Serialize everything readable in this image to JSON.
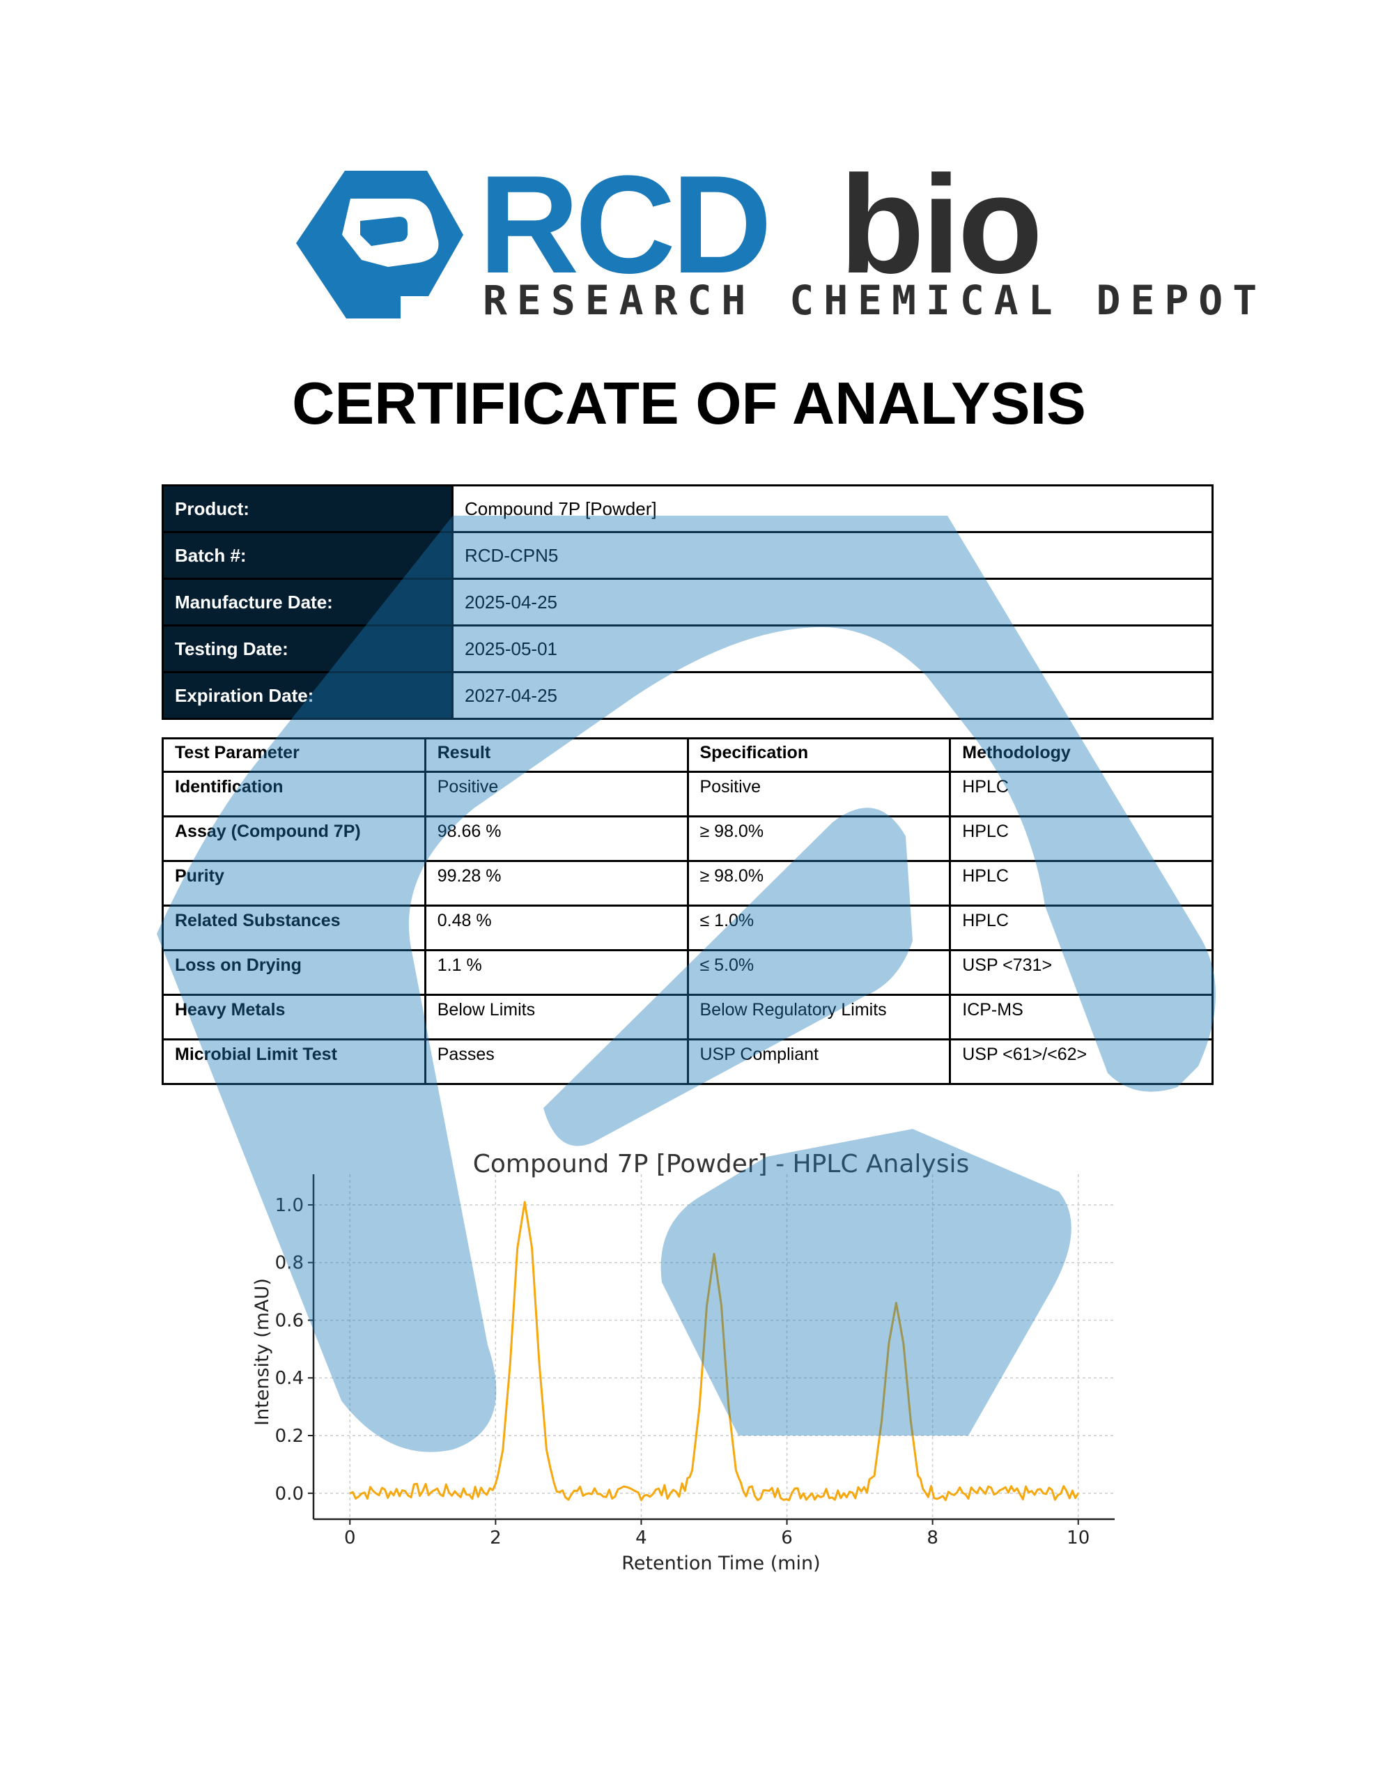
{
  "logo": {
    "brand_primary": "RCD",
    "brand_secondary": "bio",
    "tagline": "RESEARCH CHEMICAL DEPOT",
    "primary_color": "#1a79b8",
    "secondary_color": "#2f2f2f"
  },
  "title": "CERTIFICATE OF ANALYSIS",
  "info": [
    {
      "label": "Product:",
      "value": "Compound 7P [Powder]"
    },
    {
      "label": "Batch #:",
      "value": "RCD-CPN5"
    },
    {
      "label": "Manufacture Date:",
      "value": "2025-04-25"
    },
    {
      "label": "Testing Date:",
      "value": "2025-05-01"
    },
    {
      "label": "Expiration Date:",
      "value": "2027-04-25"
    }
  ],
  "tests": {
    "headers": [
      "Test Parameter",
      "Result",
      "Specification",
      "Methodology"
    ],
    "rows": [
      {
        "parameter": "Identification",
        "result": "Positive",
        "specification": "Positive",
        "method": "HPLC"
      },
      {
        "parameter": "Assay (Compound 7P)",
        "result": "98.66 %",
        "specification": "≥ 98.0%",
        "method": "HPLC"
      },
      {
        "parameter": "Purity",
        "result": "99.28 %",
        "specification": "≥ 98.0%",
        "method": "HPLC"
      },
      {
        "parameter": "Related Substances",
        "result": "0.48 %",
        "specification": "≤ 1.0%",
        "method": "HPLC"
      },
      {
        "parameter": "Loss on Drying",
        "result": "1.1 %",
        "specification": "≤ 5.0%",
        "method": "USP <731>"
      },
      {
        "parameter": "Heavy Metals",
        "result": "Below Limits",
        "specification": "Below Regulatory Limits",
        "method": "ICP-MS"
      },
      {
        "parameter": "Microbial Limit Test",
        "result": "Passes",
        "specification": "USP Compliant",
        "method": "USP <61>/<62>"
      }
    ]
  },
  "chart_data": {
    "type": "line",
    "title": "Compound 7P [Powder] - HPLC Analysis",
    "xlabel": "Retention Time (min)",
    "ylabel": "Intensity (mAU)",
    "xlim": [
      -0.5,
      10.5
    ],
    "ylim": [
      -0.09,
      1.07
    ],
    "xticks": [
      0,
      2,
      4,
      6,
      8,
      10
    ],
    "yticks": [
      0.0,
      0.2,
      0.4,
      0.6,
      0.8,
      1.0
    ],
    "grid": true,
    "line_color": "#f5a80f",
    "x": [
      0.0,
      1.0,
      1.8,
      2.0,
      2.1,
      2.2,
      2.3,
      2.4,
      2.5,
      2.6,
      2.7,
      2.8,
      3.0,
      4.0,
      4.6,
      4.7,
      4.8,
      4.9,
      5.0,
      5.1,
      5.2,
      5.3,
      5.4,
      5.6,
      6.5,
      7.1,
      7.2,
      7.3,
      7.4,
      7.5,
      7.6,
      7.7,
      7.8,
      7.9,
      8.1,
      9.0,
      10.0
    ],
    "y": [
      0.0,
      0.01,
      0.0,
      0.02,
      0.15,
      0.45,
      0.85,
      1.01,
      0.85,
      0.45,
      0.15,
      0.03,
      0.0,
      0.0,
      0.01,
      0.08,
      0.3,
      0.65,
      0.83,
      0.65,
      0.3,
      0.08,
      0.01,
      0.0,
      0.0,
      0.01,
      0.06,
      0.25,
      0.52,
      0.66,
      0.52,
      0.25,
      0.06,
      0.01,
      0.0,
      0.0,
      0.0
    ]
  }
}
